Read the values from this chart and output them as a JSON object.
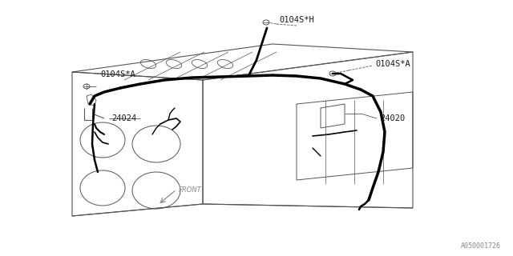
{
  "bg_color": "#ffffff",
  "line_color": "#1a1a1a",
  "diagram_color": "#555555",
  "harness_color": "#000000",
  "callout_color": "#555555",
  "labels": {
    "top_h": "0104S*H",
    "top_left_a": "0104S*A",
    "right_a": "0104S*A",
    "left_part": "24024",
    "center_part": "24020",
    "front": "FRONT",
    "part_num": "A050001726"
  },
  "figsize": [
    6.4,
    3.2
  ],
  "dpi": 100
}
